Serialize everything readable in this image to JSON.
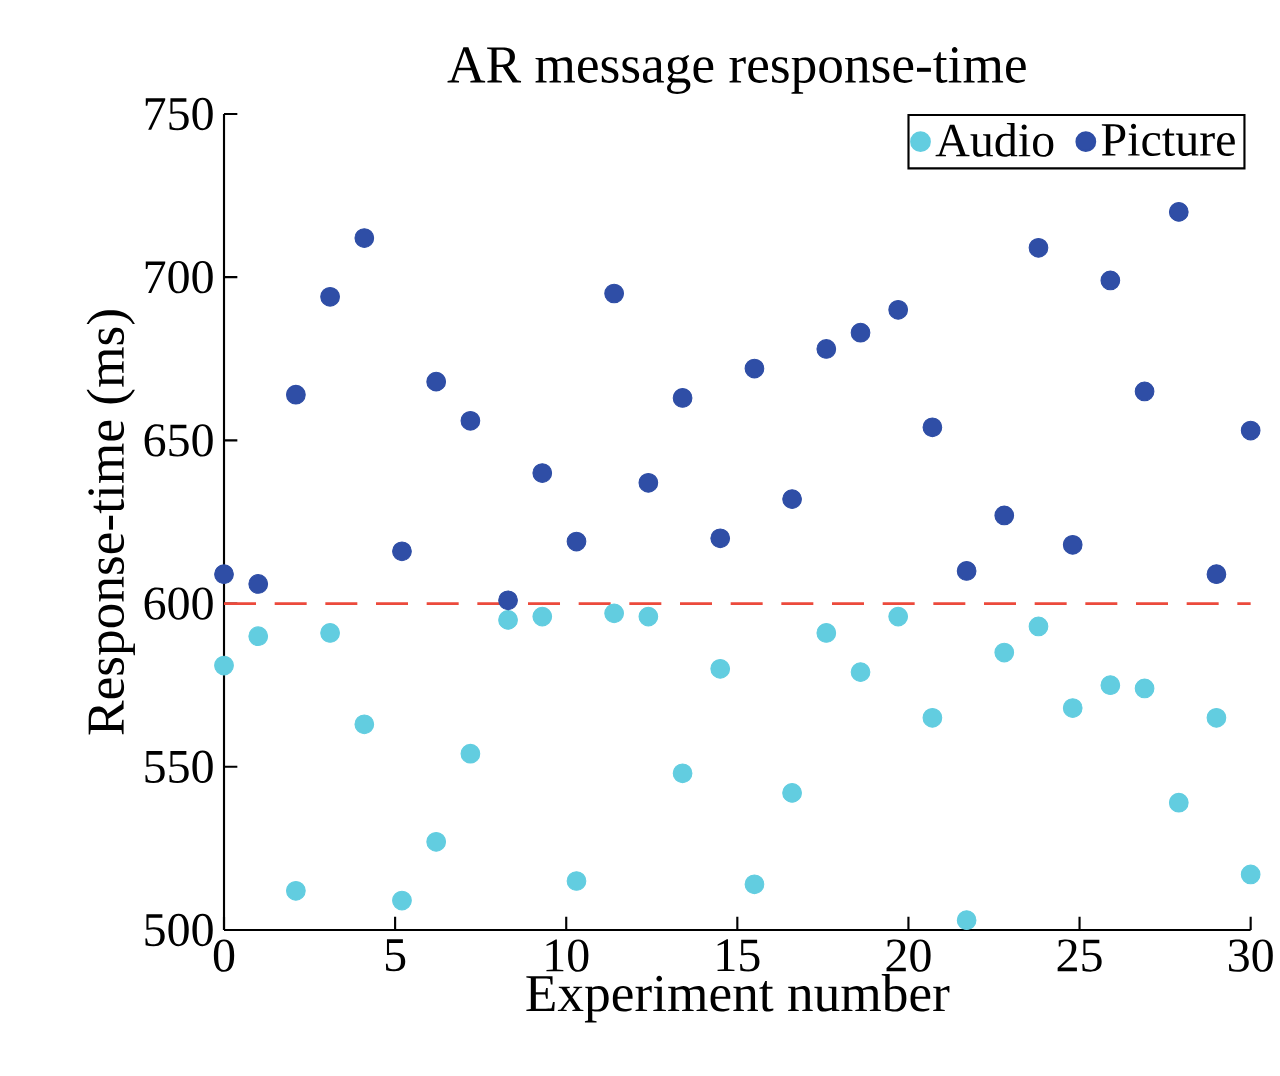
{
  "chart_data": {
    "type": "scatter",
    "title": "AR message response-time",
    "xlabel": "Experiment number",
    "ylabel": "Response-time (ms)",
    "xlim": [
      0,
      30
    ],
    "ylim": [
      500,
      750
    ],
    "xticks": [
      0,
      5,
      10,
      15,
      20,
      25,
      30
    ],
    "yticks": [
      500,
      550,
      600,
      650,
      700,
      750
    ],
    "grid": false,
    "legend": "top right",
    "marker": "circle",
    "ref_lines": [
      {
        "axis": "y",
        "value": 600,
        "color": "#ec4a3c",
        "line_style": "dashed"
      }
    ],
    "series": [
      {
        "name": "Audio",
        "color": "#62cde0",
        "x": [
          0,
          1,
          2.1,
          3.1,
          4.1,
          5.2,
          6.2,
          7.2,
          8.3,
          9.3,
          10.3,
          11.4,
          12.4,
          13.4,
          14.5,
          15.5,
          16.6,
          17.6,
          18.6,
          19.7,
          20.7,
          21.7,
          22.8,
          23.8,
          24.8,
          25.9,
          26.9,
          27.9,
          29,
          30
        ],
        "values": [
          581,
          590,
          512,
          591,
          563,
          509,
          527,
          554,
          595,
          596,
          515,
          597,
          596,
          548,
          580,
          514,
          542,
          591,
          579,
          596,
          565,
          503,
          585,
          593,
          568,
          575,
          574,
          539,
          565,
          517
        ]
      },
      {
        "name": "Picture",
        "color": "#2f4ea6",
        "x": [
          0,
          1,
          2.1,
          3.1,
          4.1,
          5.2,
          6.2,
          7.2,
          8.3,
          9.3,
          10.3,
          11.4,
          12.4,
          13.4,
          14.5,
          15.5,
          16.6,
          17.6,
          18.6,
          19.7,
          20.7,
          21.7,
          22.8,
          23.8,
          24.8,
          25.9,
          26.9,
          27.9,
          29,
          30
        ],
        "values": [
          609,
          606,
          664,
          694,
          712,
          616,
          668,
          656,
          601,
          640,
          619,
          695,
          637,
          663,
          620,
          672,
          632,
          678,
          683,
          690,
          654,
          610,
          627,
          709,
          618,
          699,
          665,
          720,
          609,
          653
        ]
      }
    ]
  }
}
